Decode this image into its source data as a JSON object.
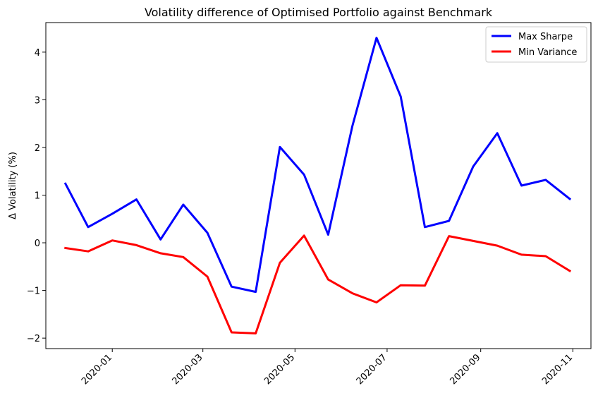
{
  "chart_data": {
    "type": "line",
    "title": "Volatility difference of Optimised Portfolio against Benchmark",
    "xlabel": "",
    "ylabel": "Δ Volatility (%)",
    "x": [
      "2019-12-01",
      "2019-12-16",
      "2020-01-01",
      "2020-01-17",
      "2020-02-02",
      "2020-02-17",
      "2020-03-04",
      "2020-03-20",
      "2020-04-05",
      "2020-04-21",
      "2020-05-07",
      "2020-05-23",
      "2020-06-08",
      "2020-06-24",
      "2020-07-10",
      "2020-07-26",
      "2020-08-11",
      "2020-08-27",
      "2020-09-12",
      "2020-09-28",
      "2020-10-14",
      "2020-10-30"
    ],
    "xlim": [
      "2019-11-18",
      "2020-11-13"
    ],
    "xticks": [
      "2020-01-01",
      "2020-03-01",
      "2020-05-01",
      "2020-07-01",
      "2020-09-01",
      "2020-11-01"
    ],
    "xtick_labels": [
      "2020-01",
      "2020-03",
      "2020-05",
      "2020-07",
      "2020-09",
      "2020-11"
    ],
    "ylim": [
      -2.22,
      4.62
    ],
    "yticks": [
      -2,
      -1,
      0,
      1,
      2,
      3,
      4
    ],
    "grid": false,
    "legend_position": "top-right",
    "series": [
      {
        "name": "Max Sharpe",
        "color": "#0000ff",
        "values": [
          1.24,
          0.33,
          0.61,
          0.91,
          0.07,
          0.8,
          0.21,
          -0.92,
          -1.03,
          2.01,
          1.43,
          0.17,
          2.45,
          4.3,
          3.07,
          0.33,
          0.46,
          1.6,
          2.3,
          1.2,
          1.32,
          0.92
        ]
      },
      {
        "name": "Min Variance",
        "color": "#ff0000",
        "values": [
          -0.11,
          -0.18,
          0.05,
          -0.05,
          -0.22,
          -0.3,
          -0.71,
          -1.88,
          -1.9,
          -0.42,
          0.15,
          -0.77,
          -1.06,
          -1.25,
          -0.89,
          -0.9,
          0.14,
          0.04,
          -0.06,
          -0.25,
          -0.28,
          -0.59
        ]
      }
    ]
  }
}
